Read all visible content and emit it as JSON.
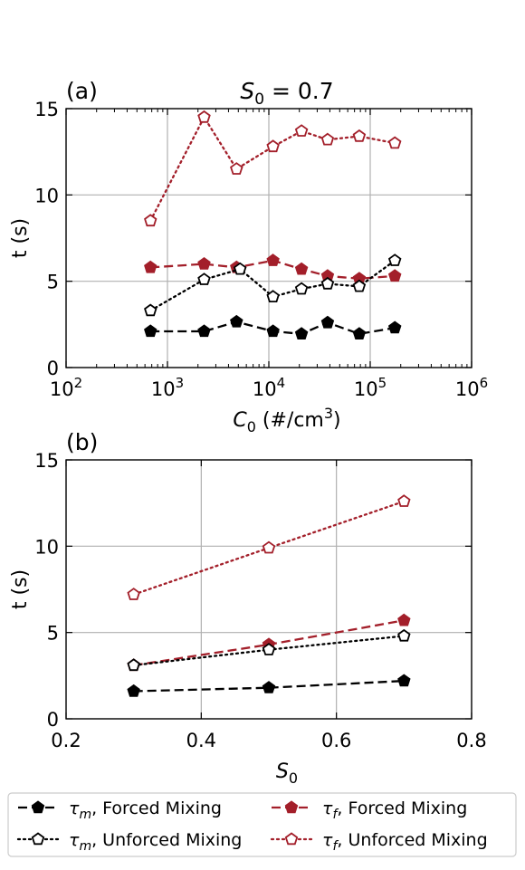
{
  "chart_data": [
    {
      "type": "line",
      "panel_label": "(a)",
      "title": "S0 = 0.7",
      "title_parts": {
        "sym": "S",
        "sub": "0",
        "rest": " = 0.7"
      },
      "xlabel": "C0 (#/cm3)",
      "xlabel_parts": {
        "sym": "C",
        "sub": "0",
        "rest": " (#/cm",
        "sup": "3",
        "end": ")"
      },
      "ylabel": "t (s)",
      "xscale": "log",
      "xlim": [
        100,
        1000000
      ],
      "ylim": [
        0,
        15
      ],
      "xticks": [
        100,
        1000,
        10000,
        100000,
        1000000
      ],
      "xtick_labels": [
        {
          "base": "10",
          "exp": "2"
        },
        {
          "base": "10",
          "exp": "3"
        },
        {
          "base": "10",
          "exp": "4"
        },
        {
          "base": "10",
          "exp": "5"
        },
        {
          "base": "10",
          "exp": "6"
        }
      ],
      "yticks": [
        0,
        5,
        10,
        15
      ],
      "ytick_labels": [
        "0",
        "5",
        "10",
        "15"
      ],
      "grid": true,
      "x": [
        680,
        2300,
        4800,
        11000,
        21000,
        38000,
        78000,
        175000
      ],
      "series": [
        {
          "key": "tau_f_unforced",
          "values": [
            8.5,
            14.5,
            11.5,
            12.8,
            13.7,
            13.2,
            13.4,
            13.0
          ]
        },
        {
          "key": "tau_f_forced",
          "values": [
            5.8,
            6.0,
            5.8,
            6.2,
            5.7,
            5.3,
            5.15,
            5.3
          ]
        },
        {
          "key": "tau_m_unforced",
          "x": [
            680,
            2300,
            5200,
            11000,
            21000,
            38000,
            78000,
            175000
          ],
          "values": [
            3.3,
            5.1,
            5.7,
            4.1,
            4.55,
            4.85,
            4.7,
            6.2
          ]
        },
        {
          "key": "tau_m_forced",
          "values": [
            2.1,
            2.1,
            2.65,
            2.1,
            1.95,
            2.6,
            1.95,
            2.3
          ]
        }
      ]
    },
    {
      "type": "line",
      "panel_label": "(b)",
      "xlabel": "S0",
      "xlabel_parts": {
        "sym": "S",
        "sub": "0"
      },
      "ylabel": "t (s)",
      "xscale": "linear",
      "xlim": [
        0.2,
        0.8
      ],
      "ylim": [
        0,
        15
      ],
      "xticks": [
        0.2,
        0.4,
        0.6,
        0.8
      ],
      "xtick_labels": [
        "0.2",
        "0.4",
        "0.6",
        "0.8"
      ],
      "yticks": [
        0,
        5,
        10,
        15
      ],
      "ytick_labels": [
        "0",
        "5",
        "10",
        "15"
      ],
      "grid": true,
      "x": [
        0.3,
        0.5,
        0.7
      ],
      "series": [
        {
          "key": "tau_f_unforced",
          "values": [
            7.2,
            9.9,
            12.6
          ]
        },
        {
          "key": "tau_f_forced",
          "values": [
            3.1,
            4.3,
            5.7
          ]
        },
        {
          "key": "tau_m_unforced",
          "values": [
            3.1,
            4.0,
            4.8
          ]
        },
        {
          "key": "tau_m_forced",
          "values": [
            1.6,
            1.8,
            2.2
          ]
        }
      ]
    }
  ],
  "legend": {
    "placement": "bottom",
    "entries": [
      {
        "key": "tau_m_forced",
        "label": "τm, Forced Mixing",
        "sym": "τ",
        "sub": "m",
        "text": ", Forced Mixing"
      },
      {
        "key": "tau_f_forced",
        "label": "τf, Forced Mixing",
        "sym": "τ",
        "sub": "f",
        "text": ", Forced Mixing"
      },
      {
        "key": "tau_m_unforced",
        "label": "τm, Unforced Mixing",
        "sym": "τ",
        "sub": "m",
        "text": ", Unforced Mixing"
      },
      {
        "key": "tau_f_unforced",
        "label": "τf, Unforced Mixing",
        "sym": "τ",
        "sub": "f",
        "text": ", Unforced Mixing"
      }
    ]
  },
  "styles": {
    "tau_m_forced": {
      "color": "#000000",
      "dash": "dashed",
      "marker": "pentagon",
      "filled": true
    },
    "tau_f_forced": {
      "color": "#a31f2a",
      "dash": "dashed",
      "marker": "pentagon",
      "filled": true
    },
    "tau_m_unforced": {
      "color": "#000000",
      "dash": "dotted",
      "marker": "pentagon",
      "filled": false
    },
    "tau_f_unforced": {
      "color": "#a31f2a",
      "dash": "dotted",
      "marker": "pentagon",
      "filled": false
    }
  }
}
